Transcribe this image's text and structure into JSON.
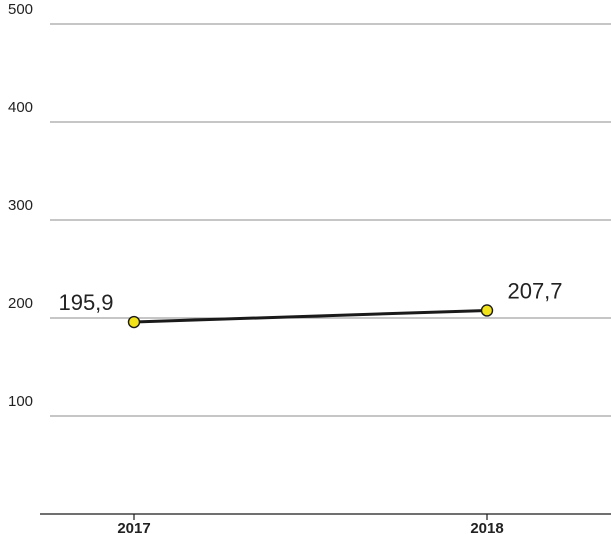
{
  "chart_data": {
    "type": "line",
    "categories": [
      "2017",
      "2018"
    ],
    "series": [
      {
        "values": [
          195.9,
          207.7
        ]
      }
    ],
    "data_labels": [
      "195,9",
      "207,7"
    ],
    "y_ticks": [
      {
        "value": 100,
        "label": "100"
      },
      {
        "value": 200,
        "label": "200"
      },
      {
        "value": 300,
        "label": "300"
      },
      {
        "value": 400,
        "label": "400"
      },
      {
        "value": 500,
        "label": "500"
      }
    ],
    "ylim": [
      0,
      500
    ],
    "grid": true,
    "legend": "none",
    "title": "",
    "xlabel": "",
    "ylabel": "",
    "colors": {
      "line": "#1a1a1a",
      "marker_fill": "#f2e21a",
      "marker_stroke": "#1a1a1a",
      "grid": "#8c8c8c",
      "axis": "#1a1a1a"
    }
  }
}
